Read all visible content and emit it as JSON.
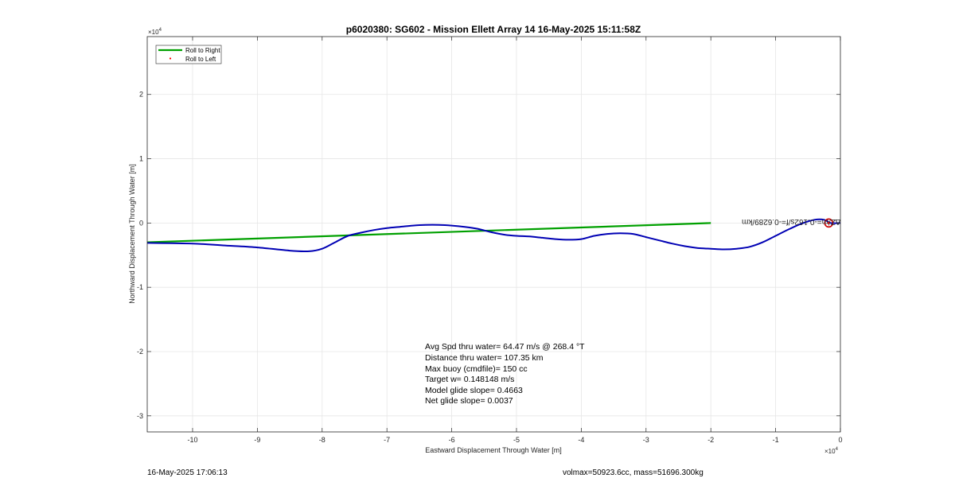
{
  "chart_data": {
    "type": "line",
    "title": "p6020380: SG602 - Mission Ellett Array 14 16-May-2025 15:11:58Z",
    "xlabel": "Eastward Displacement Through Water [m]",
    "ylabel": "Northward Displacement Through Water [m]",
    "xlim": [
      -107000,
      0
    ],
    "ylim": [
      -32500,
      29000
    ],
    "x_ticks": [
      -100000,
      -90000,
      -80000,
      -70000,
      -60000,
      -50000,
      -40000,
      -30000,
      -20000,
      -10000,
      0
    ],
    "x_tick_labels": [
      "-10",
      "-9",
      "-8",
      "-7",
      "-6",
      "-5",
      "-4",
      "-3",
      "-2",
      "-1",
      "0"
    ],
    "y_ticks": [
      -30000,
      -20000,
      -10000,
      0,
      10000,
      20000
    ],
    "y_tick_labels": [
      "-3",
      "-2",
      "-1",
      "0",
      "1",
      "2"
    ],
    "x_exponent": "×10",
    "x_exponent_power": "4",
    "y_exponent": "×10",
    "y_exponent_power": "4",
    "grid": true,
    "legend_position": "top-left",
    "series": [
      {
        "name": "Roll to Right",
        "color": "#00a000",
        "x": [
          -107000,
          -20000
        ],
        "y": [
          -3000,
          0
        ]
      },
      {
        "name": "Roll to Left",
        "color": "#ff0000",
        "x": [
          -1800
        ],
        "y": [
          0
        ]
      },
      {
        "color": "#0000b4",
        "x": [
          -107000,
          -100000,
          -95000,
          -90000,
          -85000,
          -82000,
          -80000,
          -78000,
          -76000,
          -74000,
          -72000,
          -70000,
          -68000,
          -66000,
          -64000,
          -62000,
          -60000,
          -58000,
          -56000,
          -54000,
          -52000,
          -50000,
          -48000,
          -46000,
          -44000,
          -42000,
          -40000,
          -38000,
          -36000,
          -34000,
          -32000,
          -30000,
          -28000,
          -26000,
          -24000,
          -22000,
          -20000,
          -18000,
          -16000,
          -14000,
          -12000,
          -10000,
          -8000,
          -6000,
          -4000,
          -2500,
          -1500,
          0
        ],
        "y": [
          -3100,
          -3200,
          -3500,
          -3800,
          -4300,
          -4400,
          -4000,
          -3000,
          -2000,
          -1500,
          -1100,
          -800,
          -600,
          -400,
          -300,
          -300,
          -400,
          -600,
          -900,
          -1400,
          -1800,
          -2000,
          -2100,
          -2300,
          -2500,
          -2600,
          -2500,
          -2000,
          -1700,
          -1600,
          -1700,
          -2200,
          -2700,
          -3200,
          -3600,
          -3900,
          -4000,
          -4100,
          -4000,
          -3700,
          -3000,
          -2000,
          -1000,
          -100,
          500,
          500,
          0,
          0
        ]
      }
    ],
    "annotations": [
      "Avg Spd thru water= 64.47 m/s @ 268.4 °T",
      "Distance thru water= 107.35 km",
      "Max buoy (cmdfile)= 150 cc",
      "Target w= 0.148148 m/s",
      "Model glide slope= 0.4663",
      "Net glide slope= 0.0037"
    ],
    "mirrored_label": "∆Z/m=-0.162s/f=-0.6289/km"
  },
  "footer": {
    "timestamp": "16-May-2025 17:06:13",
    "stats": "volmax=50923.6cc, mass=51696.300kg"
  }
}
